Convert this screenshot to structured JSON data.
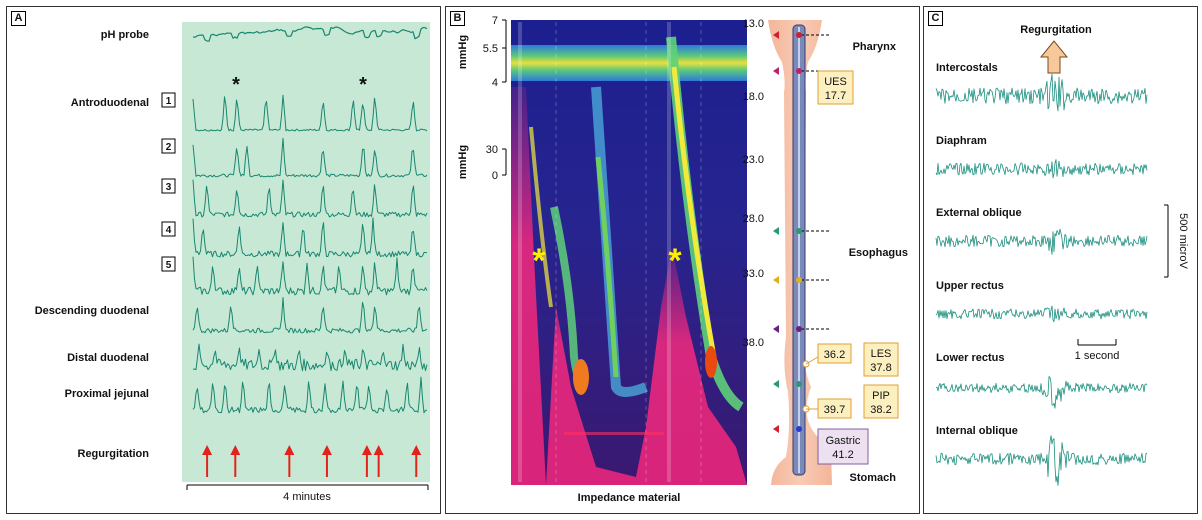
{
  "panels": {
    "a": {
      "label": "A",
      "ph_label": "pH probe",
      "trace_labels": [
        "Antroduodenal",
        "Descending duodenal",
        "Distal duodenal",
        "Proximal jejunal"
      ],
      "channel_numbers": [
        "1",
        "2",
        "3",
        "4",
        "5"
      ],
      "regurgitation_label": "Regurgitation",
      "scale_label": "4 minutes",
      "asterisk": "*",
      "colors": {
        "background": "#c8e8d6",
        "trace": "#17876f",
        "arrow": "#e3231b"
      }
    },
    "b": {
      "label": "B",
      "y_axis_label": "mmHg",
      "upper_ticks": [
        "7",
        "5.5",
        "4"
      ],
      "lower_ticks": [
        "30",
        "0"
      ],
      "depth_ticks": [
        "13.0",
        "18.0",
        "23.0",
        "28.0",
        "33.0",
        "38.0"
      ],
      "region_labels": [
        "Pharynx",
        "Esophagus",
        "Stomach"
      ],
      "xlabel": "Impedance material",
      "asterisk": "*",
      "boxes": [
        {
          "label": "UES",
          "value": "17.7"
        },
        {
          "label": "LES",
          "value": "37.8"
        },
        {
          "label": "PIP",
          "value": "38.2"
        },
        {
          "label": "Gastric",
          "value": "41.2"
        }
      ],
      "side_values": [
        "36.2",
        "39.7"
      ],
      "colors": {
        "box": "#fdf0c0",
        "box_border": "#e0a030",
        "gastric_box": "#ede0f0",
        "anatomy": "#f4b59a",
        "asterisk": "#ffee00"
      }
    },
    "c": {
      "label": "C",
      "title": "Regurgitation",
      "muscles": [
        "Intercostals",
        "Diaphram",
        "External oblique",
        "Upper rectus",
        "Lower rectus",
        "Internal oblique"
      ],
      "amplitude_scale": "500 microV",
      "time_scale": "1 second",
      "colors": {
        "trace": "#1a8f7d",
        "arrow": "#f7c89a"
      }
    }
  },
  "chart_data": [
    {
      "type": "line",
      "title": "",
      "series": [
        {
          "name": "pH probe"
        },
        {
          "name": "1"
        },
        {
          "name": "2"
        },
        {
          "name": "3"
        },
        {
          "name": "4"
        },
        {
          "name": "5"
        },
        {
          "name": "Descending duodenal"
        },
        {
          "name": "Distal duodenal"
        },
        {
          "name": "Proximal jejunal"
        }
      ],
      "events": {
        "name": "Regurgitation",
        "x_fraction": [
          0.06,
          0.18,
          0.41,
          0.57,
          0.74,
          0.79,
          0.95
        ]
      },
      "duration": "4 minutes"
    },
    {
      "type": "heatmap",
      "title": "",
      "xlabel": "Impedance material",
      "ylabel": "mmHg",
      "pressure_ticks_upper": [
        7,
        5.5,
        4
      ],
      "pressure_ticks_lower": [
        30,
        0
      ],
      "position_ticks": [
        13.0,
        18.0,
        23.0,
        28.0,
        33.0,
        38.0
      ],
      "landmarks": {
        "UES": 17.7,
        "LES": 37.8,
        "PIP": 38.2,
        "Gastric": 41.2
      }
    },
    {
      "type": "line",
      "title": "Regurgitation",
      "series": [
        {
          "name": "Intercostals"
        },
        {
          "name": "Diaphram"
        },
        {
          "name": "External oblique"
        },
        {
          "name": "Upper rectus"
        },
        {
          "name": "Lower rectus"
        },
        {
          "name": "Internal oblique"
        }
      ],
      "scales": {
        "amplitude": "500 microV",
        "time": "1 second"
      }
    }
  ]
}
